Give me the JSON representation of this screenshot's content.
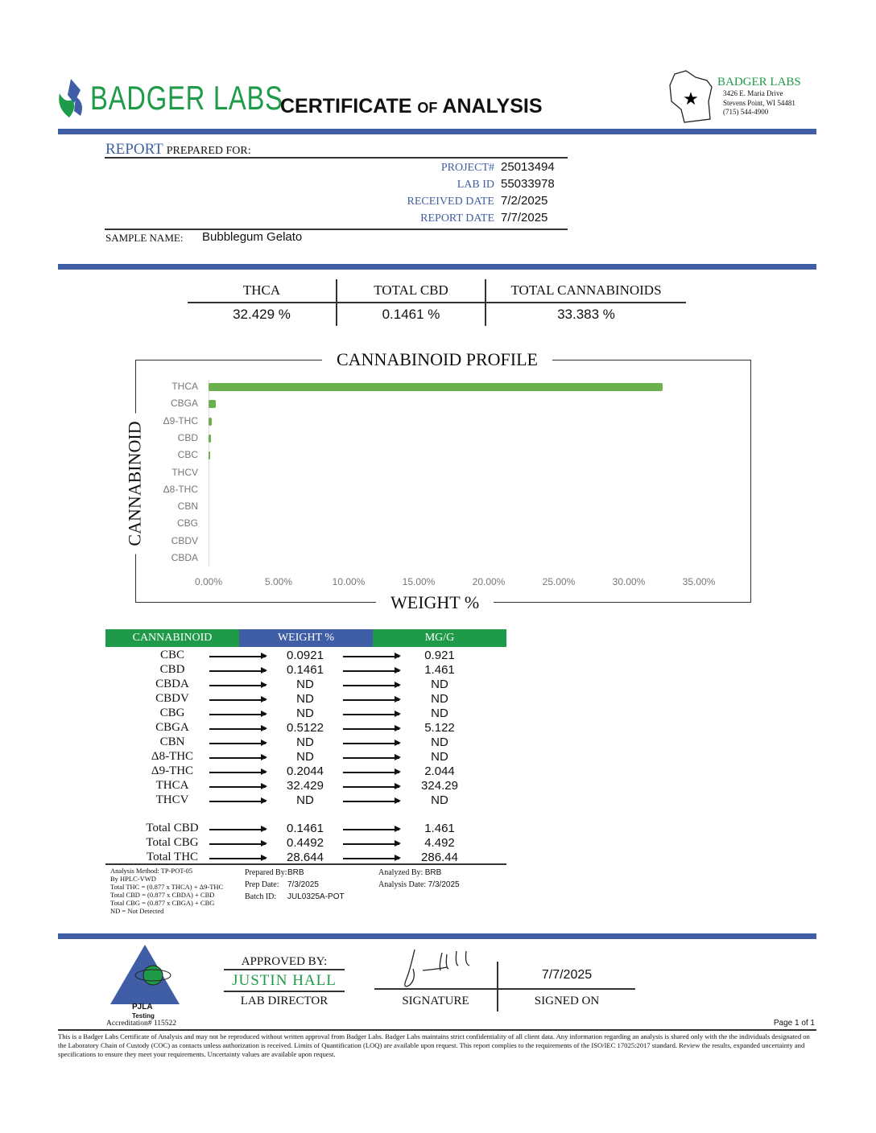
{
  "header": {
    "brand": "BADGER LABS",
    "title_main1": "CERTIFICATE",
    "title_of": "OF",
    "title_main2": "ANALYSIS",
    "address": {
      "name": "BADGER LABS",
      "street": "3426 E. Maria Drive",
      "city": "Stevens Point, WI 54481",
      "phone": "(715) 544-4900"
    },
    "brand_color": "#1e9a48",
    "accent_color": "#3f5ea6"
  },
  "report": {
    "label_report": "REPORT",
    "label_prepared": "PREPARED FOR:",
    "fields": [
      {
        "label": "PROJECT#",
        "value": "25013494"
      },
      {
        "label": "LAB ID",
        "value": "55033978"
      },
      {
        "label": "RECEIVED DATE",
        "value": "7/2/2025"
      },
      {
        "label": "REPORT DATE",
        "value": "7/7/2025"
      }
    ],
    "sample_label": "SAMPLE NAME:",
    "sample_name": "Bubblegum Gelato"
  },
  "summary": [
    {
      "label": "THCA",
      "value": "32.429 %"
    },
    {
      "label": "TOTAL CBD",
      "value": "0.1461 %"
    },
    {
      "label": "TOTAL CANNABINOIDS",
      "value": "33.383 %"
    }
  ],
  "chart_data": {
    "type": "bar",
    "orientation": "horizontal",
    "title": "CANNABINOID PROFILE",
    "xlabel": "WEIGHT %",
    "ylabel": "CANNABINOID",
    "categories": [
      "THCA",
      "CBGA",
      "Δ9-THC",
      "CBD",
      "CBC",
      "THCV",
      "Δ8-THC",
      "CBN",
      "CBG",
      "CBDV",
      "CBDA"
    ],
    "values": [
      32.429,
      0.5122,
      0.2044,
      0.1461,
      0.0921,
      0,
      0,
      0,
      0,
      0,
      0
    ],
    "xlim": [
      0,
      35
    ],
    "xticks": [
      "0.00%",
      "5.00%",
      "10.00%",
      "15.00%",
      "20.00%",
      "25.00%",
      "30.00%",
      "35.00%"
    ],
    "color": "#6ab04c",
    "grid": false
  },
  "table": {
    "headers": [
      "CANNABINOID",
      "WEIGHT %",
      "MG/G"
    ],
    "rows": [
      [
        "CBC",
        "0.0921",
        "0.921"
      ],
      [
        "CBD",
        "0.1461",
        "1.461"
      ],
      [
        "CBDA",
        "ND",
        "ND"
      ],
      [
        "CBDV",
        "ND",
        "ND"
      ],
      [
        "CBG",
        "ND",
        "ND"
      ],
      [
        "CBGA",
        "0.5122",
        "5.122"
      ],
      [
        "CBN",
        "ND",
        "ND"
      ],
      [
        "Δ8-THC",
        "ND",
        "ND"
      ],
      [
        "Δ9-THC",
        "0.2044",
        "2.044"
      ],
      [
        "THCA",
        "32.429",
        "324.29"
      ],
      [
        "THCV",
        "ND",
        "ND"
      ]
    ],
    "totals": [
      [
        "Total CBD",
        "0.1461",
        "1.461"
      ],
      [
        "Total CBG",
        "0.4492",
        "4.492"
      ],
      [
        "Total THC",
        "28.644",
        "286.44"
      ]
    ]
  },
  "notes": {
    "method": [
      "Analysis Method: TP-POT-05",
      "By HPLC-VWD",
      "Total THC = (0.877 x  THCA) + Δ9-THC",
      "Total CBD = (0.877 x  CBDA) + CBD",
      "Total CBG = (0.877 x  CBGA) + CBG",
      "ND = Not Detected"
    ],
    "prepared_by_label": "Prepared By:",
    "prepared_by": "BRB",
    "prep_date_label": "Prep Date:",
    "prep_date": "7/3/2025",
    "batch_label": "Batch ID:",
    "batch": "JUL0325A-POT",
    "analyzed_by_label": "Analyzed By:",
    "analyzed_by": "BRB",
    "analysis_date_label": "Analysis Date:",
    "analysis_date": "7/3/2025"
  },
  "footer": {
    "pjla": "PJLA",
    "pjla_sub": "Testing",
    "accreditation": "Accreditation# 115522",
    "approved_label": "APPROVED BY:",
    "approver": "JUSTIN HALL",
    "approver_title": "LAB DIRECTOR",
    "signature_label": "SIGNATURE",
    "signed_date": "7/7/2025",
    "signed_label": "SIGNED ON",
    "page": "Page 1 of 1",
    "disclaimer": "This is a Badger Labs Certificate of Analysis and may not be reproduced without written approval from Badger Labs. Badger Labs maintains strict confidentiality of all client data. Any information regarding an analysis is shared only with the the individuals designated on the Laboratory Chain of Custody (COC) as contacts unless authorization is received. Limits of Quantification (LOQ) are available upon request. This report complies to the requirements of the ISO/IEC 17025:2017 standard. Review the results, expanded uncertainty and specifications to ensure they meet your requirements. Uncertainty values are available upon request."
  }
}
